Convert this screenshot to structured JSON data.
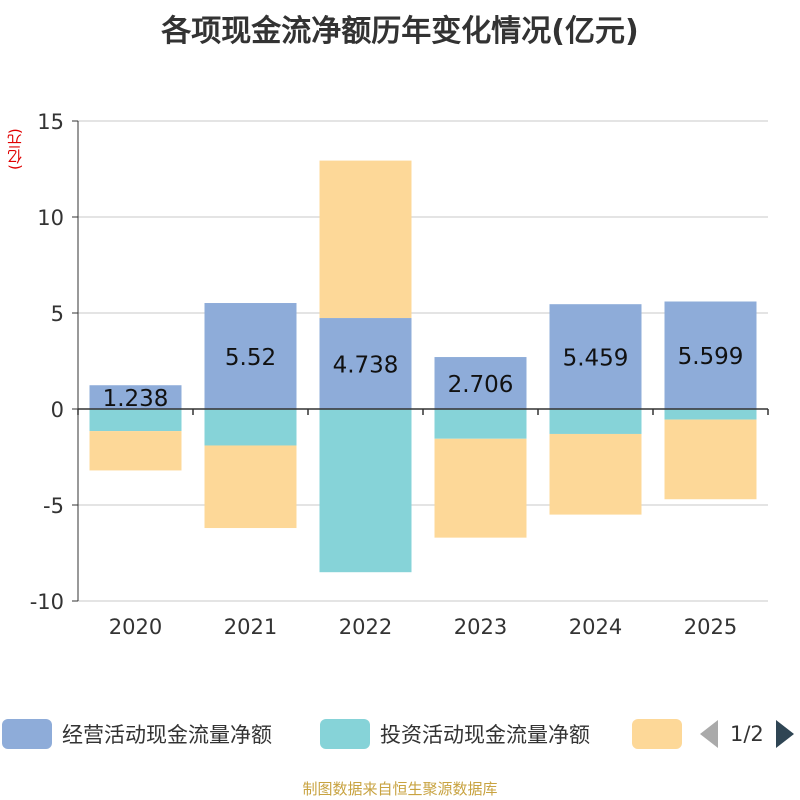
{
  "chart_data": {
    "type": "bar",
    "stacked": true,
    "title": "各项现金流净额历年变化情况(亿元)",
    "ylabel": "(亿元)",
    "ylim": [
      -10,
      15
    ],
    "yticks": [
      15,
      10,
      5,
      0,
      -5,
      -10
    ],
    "categories": [
      "2020",
      "2021",
      "2022",
      "2023",
      "2024",
      "2025"
    ],
    "series": [
      {
        "name": "经营活动现金流量净额",
        "color": "#8eacd9",
        "values": [
          1.238,
          5.52,
          4.738,
          2.706,
          5.459,
          5.599
        ],
        "labels": [
          "1.238",
          "5.52",
          "4.738",
          "2.706",
          "5.459",
          "5.599"
        ]
      },
      {
        "name": "投资活动现金流量净额",
        "color": "#86d3d8",
        "values": [
          -1.15,
          -1.9,
          -8.5,
          -1.55,
          -1.3,
          -0.55
        ]
      },
      {
        "name": "",
        "color": "#fdd898",
        "values": [
          -2.05,
          -4.3,
          8.2,
          -5.15,
          -4.2,
          -4.15
        ]
      }
    ],
    "legend_position": "bottom",
    "grid": true
  },
  "legend": {
    "items": [
      {
        "label": "经营活动现金流量净额",
        "color": "#8eacd9"
      },
      {
        "label": "投资活动现金流量净额",
        "color": "#86d3d8"
      },
      {
        "label": "",
        "color": "#fdd898"
      }
    ],
    "page_text": "1/2"
  },
  "source": "制图数据来自恒生聚源数据库"
}
